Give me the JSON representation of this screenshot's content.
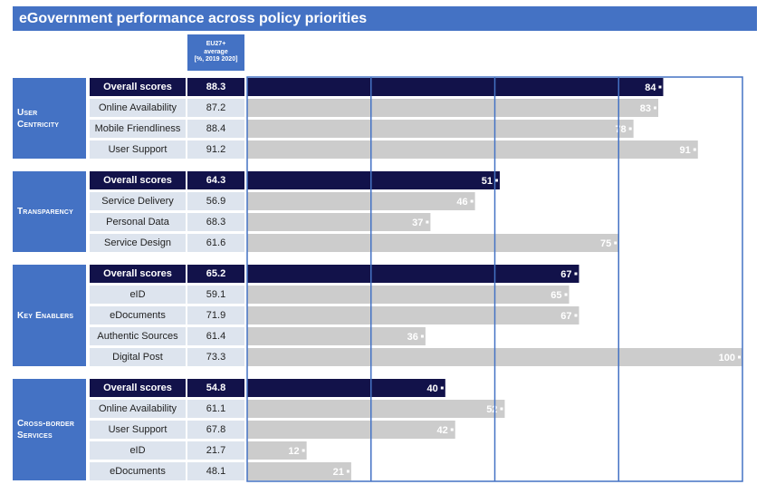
{
  "title": "eGovernment performance across policy priorities",
  "avg_header": [
    "EU27+",
    "average",
    "[%, 2019 2020]"
  ],
  "chart_data": {
    "type": "bar",
    "orientation": "horizontal",
    "xlim": [
      0,
      100
    ],
    "colors": {
      "overall": "#12124a",
      "indicator": "#cccccc",
      "frame": "#4472c4",
      "group": "#4472c4"
    },
    "groups": [
      {
        "label": "User Centricity",
        "label_lines": [
          "User",
          "Centricity"
        ],
        "rows": [
          {
            "label": "Overall scores",
            "avg": "88.3",
            "value": 84,
            "overall": true
          },
          {
            "label": "Online Availability",
            "avg": "87.2",
            "value": 83
          },
          {
            "label": "Mobile Friendliness",
            "avg": "88.4",
            "value": 78
          },
          {
            "label": "User Support",
            "avg": "91.2",
            "value": 91
          }
        ]
      },
      {
        "label": "Transparency",
        "label_lines": [
          "Transparency"
        ],
        "rows": [
          {
            "label": "Overall scores",
            "avg": "64.3",
            "value": 51,
            "overall": true
          },
          {
            "label": "Service Delivery",
            "avg": "56.9",
            "value": 46
          },
          {
            "label": "Personal Data",
            "avg": "68.3",
            "value": 37
          },
          {
            "label": "Service Design",
            "avg": "61.6",
            "value": 75
          }
        ]
      },
      {
        "label": "Key Enablers",
        "label_lines": [
          "Key Enablers"
        ],
        "rows": [
          {
            "label": "Overall scores",
            "avg": "65.2",
            "value": 67,
            "overall": true
          },
          {
            "label": "eID",
            "avg": "59.1",
            "value": 65
          },
          {
            "label": "eDocuments",
            "avg": "71.9",
            "value": 67
          },
          {
            "label": "Authentic Sources",
            "avg": "61.4",
            "value": 36
          },
          {
            "label": "Digital Post",
            "avg": "73.3",
            "value": 100
          }
        ]
      },
      {
        "label": "Cross-border Services",
        "label_lines": [
          "Cross-border",
          "Services"
        ],
        "rows": [
          {
            "label": "Overall scores",
            "avg": "54.8",
            "value": 40,
            "overall": true
          },
          {
            "label": "Online Availability",
            "avg": "61.1",
            "value": 52
          },
          {
            "label": "User Support",
            "avg": "67.8",
            "value": 42
          },
          {
            "label": "eID",
            "avg": "21.7",
            "value": 12
          },
          {
            "label": "eDocuments",
            "avg": "48.1",
            "value": 21
          }
        ]
      }
    ]
  }
}
